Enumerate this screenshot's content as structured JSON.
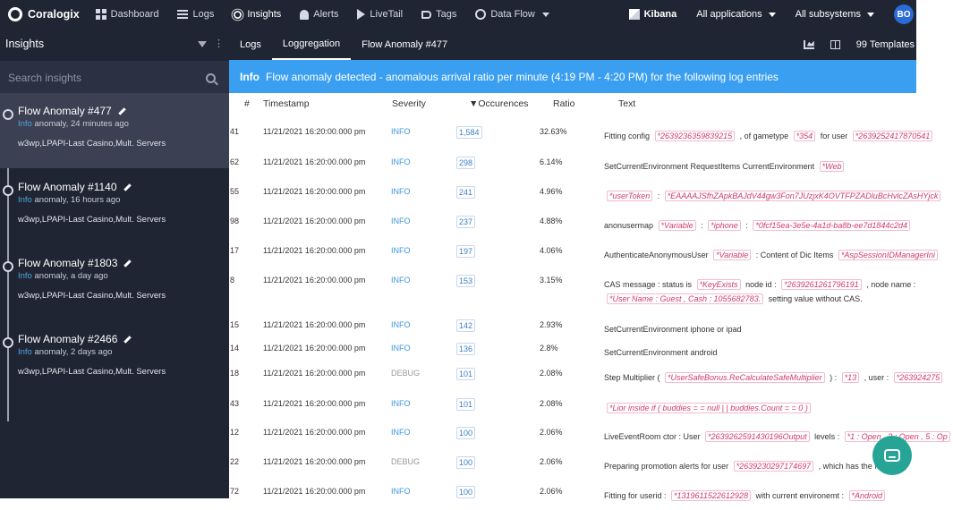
{
  "nav": {
    "logo": "Coralogix",
    "items": [
      {
        "label": "Dashboard",
        "icon": "dashboard-icon"
      },
      {
        "label": "Logs",
        "icon": "logs-icon"
      },
      {
        "label": "Insights",
        "icon": "insights-icon"
      },
      {
        "label": "Alerts",
        "icon": "bell-icon"
      },
      {
        "label": "LiveTail",
        "icon": "play-icon"
      },
      {
        "label": "Tags",
        "icon": "tag-icon"
      },
      {
        "label": "Data Flow",
        "icon": "dataflow-icon"
      }
    ],
    "kibana": "Kibana",
    "applications": "All applications",
    "subsystems": "All subsystems",
    "avatar": "BO"
  },
  "sidebar": {
    "title": "Insights",
    "search_placeholder": "Search insights",
    "items": [
      {
        "title": "Flow Anomaly #477",
        "level": "Info",
        "age": "anomaly, 24 minutes ago",
        "source": "w3wp,LPAPI-Last Casino,Mult. Servers"
      },
      {
        "title": "Flow Anomaly #1140",
        "level": "Info",
        "age": "anomaly, 16 hours ago",
        "source": "w3wp,LPAPI-Last Casino,Mult. Servers"
      },
      {
        "title": "Flow Anomaly #1803",
        "level": "Info",
        "age": "anomaly, a day ago",
        "source": "w3wp,LPAPI-Last Casino,Mult. Servers"
      },
      {
        "title": "Flow Anomaly #2466",
        "level": "Info",
        "age": "anomaly, 2 days ago",
        "source": "w3wp,LPAPI-Last Casino,Mult. Servers"
      }
    ]
  },
  "tabs": {
    "items": [
      "Logs",
      "Loggregation",
      "Flow Anomaly #477"
    ],
    "templates": "99 Templates"
  },
  "banner": {
    "level": "Info",
    "message": "Flow anomaly detected - anomalous arrival ratio per minute (4:19 PM - 4:20 PM) for the following log entries"
  },
  "table": {
    "headers": {
      "num": "#",
      "timestamp": "Timestamp",
      "severity": "Severity",
      "occurrences": "▼Occurences",
      "ratio": "Ratio",
      "text": "Text"
    },
    "rows": [
      {
        "num": "41",
        "ts": "11/21/2021 16:20:00.000 pm",
        "sev": "INFO",
        "occ": "1,584",
        "ratio": "32.63%",
        "text": [
          [
            "Fitting config ",
            ""
          ],
          [
            "*2639236359839215",
            "t"
          ],
          [
            " , of gametype ",
            ""
          ],
          [
            "*354",
            "t"
          ],
          [
            " for user ",
            ""
          ],
          [
            "*2639252417870541",
            "t"
          ]
        ]
      },
      {
        "num": "62",
        "ts": "11/21/2021 16:20:00.000 pm",
        "sev": "INFO",
        "occ": "298",
        "ratio": "6.14%",
        "text": [
          [
            "SetCurrentEnvironment RequestItems CurrentEnvironment ",
            ""
          ],
          [
            "*Web",
            "t"
          ]
        ]
      },
      {
        "num": "55",
        "ts": "11/21/2021 16:20:00.000 pm",
        "sev": "INFO",
        "occ": "241",
        "ratio": "4.96%",
        "text": [
          [
            "*userToken",
            "t"
          ],
          [
            " : ",
            ""
          ],
          [
            "*EAAAAJSfhZApkBAJdV44gw3Fon7JUzjxK4OVTFPZADluBcHvlcZAsHYjck",
            "t"
          ]
        ]
      },
      {
        "num": "98",
        "ts": "11/21/2021 16:20:00.000 pm",
        "sev": "INFO",
        "occ": "237",
        "ratio": "4.88%",
        "text": [
          [
            "anonusermap ",
            ""
          ],
          [
            "*Variable",
            "t"
          ],
          [
            " : ",
            ""
          ],
          [
            "*iphone",
            "t"
          ],
          [
            " : ",
            ""
          ],
          [
            "*0fcf15ea-3e5e-4a1d-ba8b-ee7d1844c2d4",
            "t"
          ]
        ]
      },
      {
        "num": "17",
        "ts": "11/21/2021 16:20:00.000 pm",
        "sev": "INFO",
        "occ": "197",
        "ratio": "4.06%",
        "text": [
          [
            "AuthenticateAnonymousUser ",
            ""
          ],
          [
            "*Variable",
            "t"
          ],
          [
            " : Content of Dic Items ",
            ""
          ],
          [
            "*AspSessionIDManagerIni",
            "t"
          ]
        ]
      },
      {
        "num": "8",
        "ts": "11/21/2021 16:20:00.000 pm",
        "sev": "INFO",
        "occ": "153",
        "ratio": "3.15%",
        "text": [
          [
            "CAS message : status is ",
            ""
          ],
          [
            "*KeyExists",
            "t"
          ],
          [
            " node id : ",
            ""
          ],
          [
            "*2639261261796191",
            "t"
          ],
          [
            " , node name :",
            ""
          ]
        ],
        "text2": [
          [
            "*User Name : Guest , Cash : 1055682783.",
            "t"
          ],
          [
            " setting value without CAS.",
            ""
          ]
        ]
      },
      {
        "num": "15",
        "ts": "11/21/2021 16:20:00.000 pm",
        "sev": "INFO",
        "occ": "142",
        "ratio": "2.93%",
        "text": [
          [
            "SetCurrentEnvironment iphone or ipad",
            ""
          ]
        ]
      },
      {
        "num": "14",
        "ts": "11/21/2021 16:20:00.000 pm",
        "sev": "INFO",
        "occ": "136",
        "ratio": "2.8%",
        "text": [
          [
            "SetCurrentEnvironment android",
            ""
          ]
        ]
      },
      {
        "num": "18",
        "ts": "11/21/2021 16:20:00.000 pm",
        "sev": "DEBUG",
        "occ": "101",
        "ratio": "2.08%",
        "text": [
          [
            "Step Multiplier ( ",
            ""
          ],
          [
            "*UserSafeBonus.ReCalculateSafeMultiplier",
            "t"
          ],
          [
            " ) : ",
            ""
          ],
          [
            "*13",
            "t"
          ],
          [
            " , user : ",
            ""
          ],
          [
            "*263924275",
            "t"
          ]
        ]
      },
      {
        "num": "43",
        "ts": "11/21/2021 16:20:00.000 pm",
        "sev": "INFO",
        "occ": "101",
        "ratio": "2.08%",
        "text": [
          [
            "*Lior inside if ( buddies = = null | | buddies.Count = = 0 )",
            "t"
          ]
        ]
      },
      {
        "num": "12",
        "ts": "11/21/2021 16:20:00.000 pm",
        "sev": "INFO",
        "occ": "100",
        "ratio": "2.06%",
        "text": [
          [
            "LiveEventRoom ctor : User ",
            ""
          ],
          [
            "*2639262591430196Output",
            "t"
          ],
          [
            " levels : ",
            ""
          ],
          [
            "*1 : Open , 3 : Open , 5 : Op",
            "t"
          ]
        ]
      },
      {
        "num": "22",
        "ts": "11/21/2021 16:20:00.000 pm",
        "sev": "DEBUG",
        "occ": "100",
        "ratio": "2.06%",
        "text": [
          [
            "Preparing promotion alerts for user ",
            ""
          ],
          [
            "*2639230297174697",
            "t"
          ],
          [
            " , which has the follo",
            ""
          ]
        ]
      },
      {
        "num": "72",
        "ts": "11/21/2021 16:20:00.000 pm",
        "sev": "INFO",
        "occ": "100",
        "ratio": "2.06%",
        "text": [
          [
            "Fitting for userid : ",
            ""
          ],
          [
            "*1319611522612928",
            "t"
          ],
          [
            " with current environemt : ",
            ""
          ],
          [
            "*Android",
            "t"
          ]
        ]
      }
    ]
  }
}
